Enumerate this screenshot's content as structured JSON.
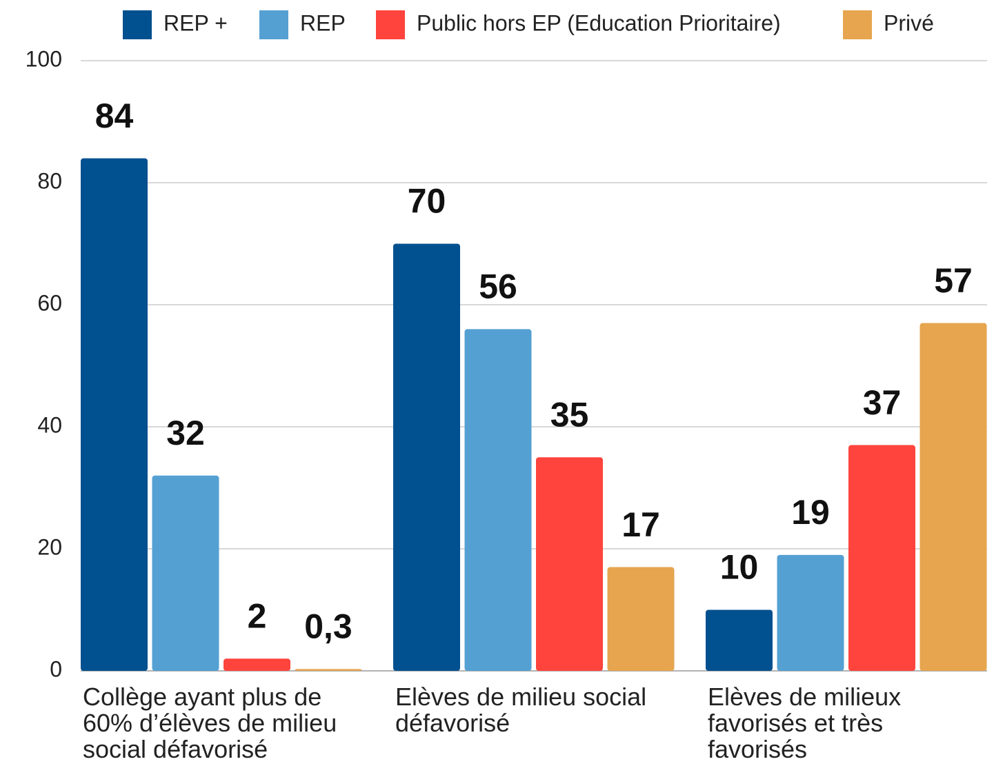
{
  "chart_data": {
    "type": "bar",
    "categories": [
      "Collège ayant plus de 60% d’élèves de milieu social défavorisé",
      "Elèves de milieu social défavorisé",
      "Elèves de milieux favorisés et très favorisés"
    ],
    "series": [
      {
        "name": "REP +",
        "color": "#01508f",
        "values": [
          84,
          70,
          10
        ]
      },
      {
        "name": "REP",
        "color": "#55a0d3",
        "values": [
          32,
          56,
          19
        ]
      },
      {
        "name": "Public hors EP (Education Prioritaire)",
        "color": "#fe443d",
        "values": [
          2,
          35,
          37
        ]
      },
      {
        "name": "Privé",
        "color": "#e6a54e",
        "values": [
          0.3,
          17,
          57
        ],
        "value_labels": [
          "0,3",
          "17",
          "57"
        ]
      }
    ],
    "ylim": [
      0,
      100
    ],
    "yticks": [
      0,
      20,
      40,
      60,
      80,
      100
    ],
    "grid": true,
    "legend": "top"
  }
}
